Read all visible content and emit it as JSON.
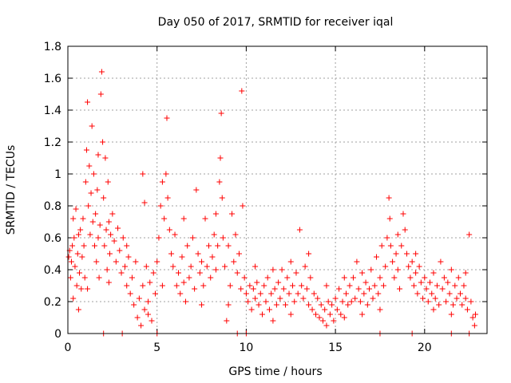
{
  "chart_data": {
    "type": "scatter",
    "title": "Day 050 of 2017, SRMTID for receiver iqal",
    "xlabel": "GPS time / hours",
    "ylabel": "SRMTID / TECUs",
    "xlim": [
      0,
      23.5
    ],
    "ylim": [
      0,
      1.8
    ],
    "xticks": [
      0,
      5,
      10,
      15,
      20
    ],
    "yticks": [
      0,
      0.2,
      0.4,
      0.6,
      0.8,
      1,
      1.2,
      1.4,
      1.6,
      1.8
    ],
    "xtick_labels": [
      "0",
      "5",
      "10",
      "15",
      "20"
    ],
    "ytick_labels": [
      "0",
      "0.2",
      "0.4",
      "0.6",
      "0.8",
      "1",
      "1.2",
      "1.4",
      "1.6",
      "1.8"
    ],
    "grid": true,
    "marker": "plus",
    "color": "#ff0000",
    "series": [
      {
        "name": "SRMTID",
        "points": [
          [
            0.05,
            0.48
          ],
          [
            0.1,
            0.52
          ],
          [
            0.15,
            0.35
          ],
          [
            0.2,
            0.45
          ],
          [
            0.25,
            0.55
          ],
          [
            0.3,
            0.22
          ],
          [
            0.35,
            0.6
          ],
          [
            0.4,
            0.42
          ],
          [
            0.45,
            0.78
          ],
          [
            0.5,
            0.3
          ],
          [
            0.55,
            0.5
          ],
          [
            0.6,
            0.15
          ],
          [
            0.65,
            0.38
          ],
          [
            0.7,
            0.65
          ],
          [
            0.75,
            0.28
          ],
          [
            0.8,
            0.48
          ],
          [
            0.85,
            0.72
          ],
          [
            0.9,
            0.55
          ],
          [
            0.95,
            0.35
          ],
          [
            1.0,
            0.95
          ],
          [
            1.05,
            1.15
          ],
          [
            1.1,
            1.45
          ],
          [
            1.15,
            0.8
          ],
          [
            1.2,
            1.05
          ],
          [
            1.25,
            0.62
          ],
          [
            1.3,
            0.88
          ],
          [
            1.35,
            1.3
          ],
          [
            1.4,
            0.7
          ],
          [
            1.45,
            1.0
          ],
          [
            1.5,
            0.55
          ],
          [
            1.55,
            0.75
          ],
          [
            1.6,
            0.45
          ],
          [
            1.65,
            0.9
          ],
          [
            1.7,
            0.6
          ],
          [
            1.75,
            0.35
          ],
          [
            1.8,
            0.68
          ],
          [
            1.85,
            1.5
          ],
          [
            1.9,
            1.64
          ],
          [
            1.95,
            1.2
          ],
          [
            2.0,
            0.85
          ],
          [
            2.05,
            0.55
          ],
          [
            2.1,
            1.1
          ],
          [
            2.15,
            0.65
          ],
          [
            2.2,
            0.4
          ],
          [
            2.25,
            0.95
          ],
          [
            2.3,
            0.7
          ],
          [
            2.35,
            0.5
          ],
          [
            2.4,
            0.62
          ],
          [
            2.5,
            0.75
          ],
          [
            2.6,
            0.58
          ],
          [
            2.7,
            0.45
          ],
          [
            2.8,
            0.66
          ],
          [
            2.9,
            0.52
          ],
          [
            3.0,
            0.38
          ],
          [
            3.1,
            0.6
          ],
          [
            3.2,
            0.42
          ],
          [
            3.3,
            0.3
          ],
          [
            3.4,
            0.48
          ],
          [
            3.5,
            0.25
          ],
          [
            3.6,
            0.35
          ],
          [
            3.7,
            0.18
          ],
          [
            3.8,
            0.45
          ],
          [
            3.9,
            0.1
          ],
          [
            4.0,
            0.22
          ],
          [
            4.1,
            0.05
          ],
          [
            4.2,
            0.3
          ],
          [
            4.3,
            0.15
          ],
          [
            4.4,
            0.42
          ],
          [
            4.5,
            0.2
          ],
          [
            4.6,
            0.32
          ],
          [
            4.7,
            0.08
          ],
          [
            4.8,
            0.38
          ],
          [
            4.9,
            0.25
          ],
          [
            5.0,
            0.45
          ],
          [
            5.1,
            0.6
          ],
          [
            5.2,
            0.8
          ],
          [
            5.3,
            0.95
          ],
          [
            5.4,
            0.72
          ],
          [
            5.5,
            1.0
          ],
          [
            5.55,
            1.35
          ],
          [
            5.6,
            0.85
          ],
          [
            5.7,
            0.65
          ],
          [
            5.8,
            0.5
          ],
          [
            5.9,
            0.42
          ],
          [
            6.0,
            0.62
          ],
          [
            6.1,
            0.3
          ],
          [
            6.2,
            0.38
          ],
          [
            6.3,
            0.25
          ],
          [
            6.4,
            0.48
          ],
          [
            6.5,
            0.32
          ],
          [
            6.6,
            0.2
          ],
          [
            6.7,
            0.55
          ],
          [
            6.8,
            0.35
          ],
          [
            6.9,
            0.42
          ],
          [
            7.0,
            0.6
          ],
          [
            7.1,
            0.28
          ],
          [
            7.2,
            0.9
          ],
          [
            7.3,
            0.5
          ],
          [
            7.4,
            0.38
          ],
          [
            7.5,
            0.45
          ],
          [
            7.6,
            0.3
          ],
          [
            7.7,
            0.72
          ],
          [
            7.8,
            0.42
          ],
          [
            7.9,
            0.55
          ],
          [
            8.0,
            0.35
          ],
          [
            8.1,
            0.48
          ],
          [
            8.2,
            0.62
          ],
          [
            8.3,
            0.4
          ],
          [
            8.4,
            0.55
          ],
          [
            8.5,
            0.95
          ],
          [
            8.55,
            1.1
          ],
          [
            8.6,
            1.38
          ],
          [
            8.65,
            0.85
          ],
          [
            8.7,
            0.6
          ],
          [
            8.8,
            0.42
          ],
          [
            8.9,
            0.08
          ],
          [
            9.0,
            0.55
          ],
          [
            9.1,
            0.3
          ],
          [
            9.2,
            0.75
          ],
          [
            9.3,
            0.45
          ],
          [
            9.4,
            0.62
          ],
          [
            9.5,
            0.38
          ],
          [
            9.6,
            0.5
          ],
          [
            9.7,
            0.28
          ],
          [
            9.75,
            1.52
          ],
          [
            9.8,
            0.8
          ],
          [
            9.9,
            0.35
          ],
          [
            10.0,
            0.25
          ],
          [
            10.1,
            0.2
          ],
          [
            10.2,
            0.3
          ],
          [
            10.3,
            0.15
          ],
          [
            10.4,
            0.28
          ],
          [
            10.5,
            0.22
          ],
          [
            10.6,
            0.32
          ],
          [
            10.7,
            0.18
          ],
          [
            10.8,
            0.25
          ],
          [
            10.9,
            0.12
          ],
          [
            11.0,
            0.3
          ],
          [
            11.1,
            0.2
          ],
          [
            11.2,
            0.35
          ],
          [
            11.3,
            0.15
          ],
          [
            11.4,
            0.25
          ],
          [
            11.5,
            0.08
          ],
          [
            11.6,
            0.28
          ],
          [
            11.7,
            0.18
          ],
          [
            11.8,
            0.32
          ],
          [
            11.9,
            0.22
          ],
          [
            12.0,
            0.4
          ],
          [
            12.1,
            0.28
          ],
          [
            12.2,
            0.18
          ],
          [
            12.3,
            0.35
          ],
          [
            12.4,
            0.25
          ],
          [
            12.5,
            0.45
          ],
          [
            12.6,
            0.3
          ],
          [
            12.7,
            0.2
          ],
          [
            12.8,
            0.38
          ],
          [
            12.9,
            0.25
          ],
          [
            13.0,
            0.65
          ],
          [
            13.1,
            0.3
          ],
          [
            13.2,
            0.22
          ],
          [
            13.3,
            0.42
          ],
          [
            13.4,
            0.28
          ],
          [
            13.5,
            0.18
          ],
          [
            13.6,
            0.35
          ],
          [
            13.7,
            0.15
          ],
          [
            13.8,
            0.25
          ],
          [
            13.9,
            0.12
          ],
          [
            14.0,
            0.22
          ],
          [
            14.1,
            0.1
          ],
          [
            14.2,
            0.18
          ],
          [
            14.3,
            0.08
          ],
          [
            14.4,
            0.15
          ],
          [
            14.5,
            0.05
          ],
          [
            14.6,
            0.2
          ],
          [
            14.7,
            0.12
          ],
          [
            14.8,
            0.18
          ],
          [
            14.9,
            0.08
          ],
          [
            15.0,
            0.22
          ],
          [
            15.1,
            0.15
          ],
          [
            15.2,
            0.28
          ],
          [
            15.3,
            0.12
          ],
          [
            15.4,
            0.2
          ],
          [
            15.5,
            0.1
          ],
          [
            15.6,
            0.25
          ],
          [
            15.7,
            0.18
          ],
          [
            15.8,
            0.3
          ],
          [
            15.9,
            0.2
          ],
          [
            16.0,
            0.35
          ],
          [
            16.1,
            0.22
          ],
          [
            16.2,
            0.45
          ],
          [
            16.3,
            0.28
          ],
          [
            16.4,
            0.2
          ],
          [
            16.5,
            0.38
          ],
          [
            16.6,
            0.25
          ],
          [
            16.7,
            0.32
          ],
          [
            16.8,
            0.18
          ],
          [
            16.9,
            0.28
          ],
          [
            17.0,
            0.4
          ],
          [
            17.1,
            0.22
          ],
          [
            17.2,
            0.3
          ],
          [
            17.3,
            0.48
          ],
          [
            17.4,
            0.25
          ],
          [
            17.5,
            0.35
          ],
          [
            17.6,
            0.55
          ],
          [
            17.7,
            0.3
          ],
          [
            17.8,
            0.42
          ],
          [
            17.9,
            0.6
          ],
          [
            18.0,
            0.85
          ],
          [
            18.05,
            0.72
          ],
          [
            18.1,
            0.55
          ],
          [
            18.2,
            0.45
          ],
          [
            18.3,
            0.35
          ],
          [
            18.4,
            0.5
          ],
          [
            18.5,
            0.4
          ],
          [
            18.6,
            0.28
          ],
          [
            18.7,
            0.55
          ],
          [
            18.8,
            0.75
          ],
          [
            18.9,
            0.65
          ],
          [
            19.0,
            0.5
          ],
          [
            19.1,
            0.42
          ],
          [
            19.2,
            0.35
          ],
          [
            19.3,
            0.45
          ],
          [
            19.4,
            0.3
          ],
          [
            19.5,
            0.38
          ],
          [
            19.6,
            0.25
          ],
          [
            19.7,
            0.42
          ],
          [
            19.8,
            0.32
          ],
          [
            19.9,
            0.22
          ],
          [
            20.0,
            0.35
          ],
          [
            20.1,
            0.28
          ],
          [
            20.2,
            0.2
          ],
          [
            20.3,
            0.32
          ],
          [
            20.4,
            0.25
          ],
          [
            20.5,
            0.38
          ],
          [
            20.6,
            0.22
          ],
          [
            20.7,
            0.3
          ],
          [
            20.8,
            0.18
          ],
          [
            20.9,
            0.45
          ],
          [
            21.0,
            0.28
          ],
          [
            21.1,
            0.35
          ],
          [
            21.2,
            0.2
          ],
          [
            21.3,
            0.32
          ],
          [
            21.4,
            0.25
          ],
          [
            21.5,
            0.4
          ],
          [
            21.6,
            0.18
          ],
          [
            21.7,
            0.3
          ],
          [
            21.8,
            0.22
          ],
          [
            21.9,
            0.35
          ],
          [
            22.0,
            0.25
          ],
          [
            22.1,
            0.18
          ],
          [
            22.2,
            0.3
          ],
          [
            22.3,
            0.22
          ],
          [
            22.4,
            0.15
          ],
          [
            22.5,
            0.62
          ],
          [
            22.6,
            0.2
          ],
          [
            22.7,
            0.1
          ],
          [
            22.8,
            0.05
          ],
          [
            22.85,
            0.12
          ],
          [
            0.3,
            0.72
          ],
          [
            0.6,
            0.62
          ],
          [
            1.1,
            0.28
          ],
          [
            1.7,
            1.12
          ],
          [
            2.3,
            0.32
          ],
          [
            3.3,
            0.55
          ],
          [
            4.5,
            0.12
          ],
          [
            5.3,
            0.3
          ],
          [
            6.5,
            0.72
          ],
          [
            7.5,
            0.18
          ],
          [
            8.3,
            0.75
          ],
          [
            9.0,
            0.18
          ],
          [
            10.5,
            0.42
          ],
          [
            11.5,
            0.4
          ],
          [
            12.5,
            0.12
          ],
          [
            13.5,
            0.5
          ],
          [
            14.5,
            0.3
          ],
          [
            15.5,
            0.35
          ],
          [
            16.5,
            0.12
          ],
          [
            17.5,
            0.15
          ],
          [
            18.5,
            0.62
          ],
          [
            19.5,
            0.5
          ],
          [
            20.5,
            0.15
          ],
          [
            21.5,
            0.12
          ],
          [
            22.3,
            0.38
          ],
          [
            4.3,
            0.82
          ],
          [
            4.2,
            1.0
          ],
          [
            5.0,
            0.0
          ],
          [
            3.05,
            0.0
          ],
          [
            2.0,
            0.0
          ],
          [
            9.5,
            0.0
          ],
          [
            10.0,
            0.0
          ],
          [
            17.5,
            0.0
          ],
          [
            19.3,
            0.0
          ],
          [
            21.5,
            0.0
          ],
          [
            22.5,
            0.0
          ]
        ]
      }
    ]
  }
}
